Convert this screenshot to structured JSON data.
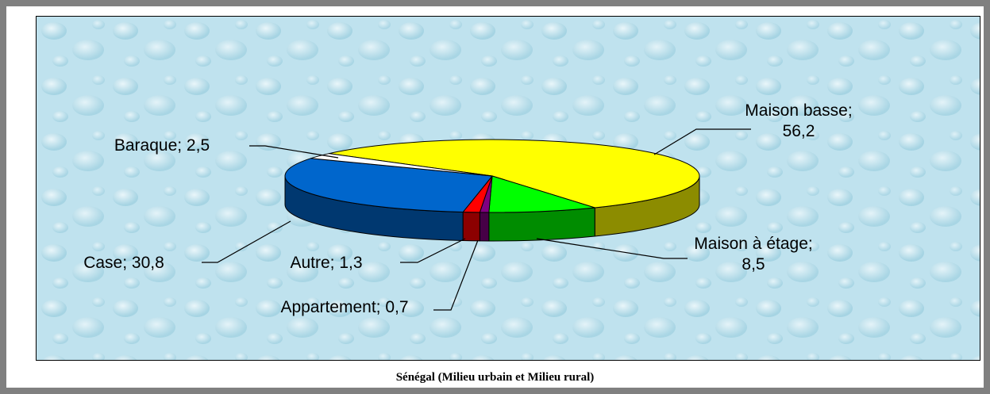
{
  "chart_data": {
    "type": "pie3d",
    "title": "Sénégal (Milieu urbain et Milieu rural)",
    "values": [
      56.2,
      8.5,
      0.7,
      1.3,
      30.8,
      2.5
    ],
    "value_labels": [
      "Maison basse; 56,2",
      "Maison à étage; 8,5",
      "Appartement; 0,7",
      "Autre; 1,3",
      "Case; 30,8",
      "Baraque; 2,5"
    ],
    "colors": [
      "#ffff00",
      "#00ff00",
      "#800080",
      "#ff0000",
      "#0066cc",
      "#ffffff"
    ]
  }
}
